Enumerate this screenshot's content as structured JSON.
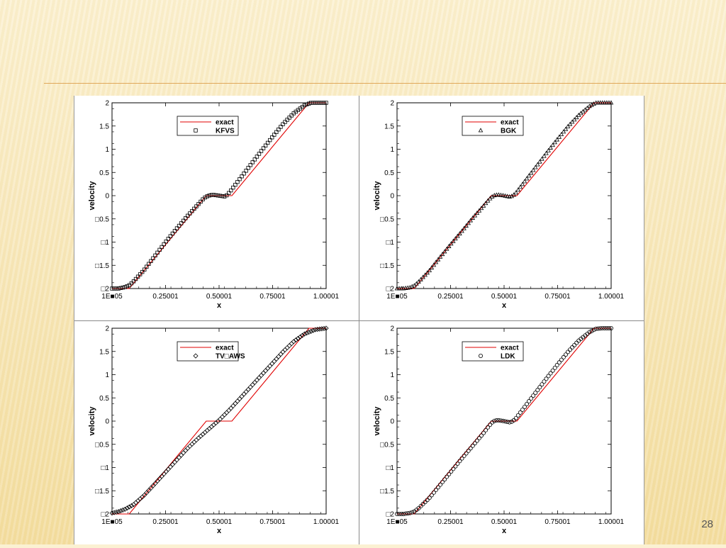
{
  "slide": {
    "number": "28"
  },
  "colors": {
    "exact": "#e00000",
    "markers": "#000000"
  },
  "chart_data": [
    {
      "type": "line",
      "xlabel": "x",
      "ylabel": "velocity",
      "xlim": [
        1e-05,
        1.00001
      ],
      "ylim": [
        -2,
        2
      ],
      "xticks": [
        "1E​■05",
        "0.25001",
        "0.50001",
        "0.75001",
        "1.00001"
      ],
      "yticks": [
        "2",
        "1.5",
        "1",
        "0.5",
        "0",
        "□0.5",
        "□1",
        "□1.5",
        "□2"
      ],
      "legend": {
        "position": "top-center",
        "exact_label": "exact",
        "method_label": "KFVS"
      },
      "marker": "square",
      "series": [
        {
          "name": "exact",
          "x": [
            1e-05,
            0.08,
            0.44,
            0.47,
            0.53,
            0.56,
            0.92,
            1.00001
          ],
          "y": [
            -2,
            -2,
            0,
            0,
            0,
            0,
            2,
            2
          ]
        },
        {
          "name": "KFVS",
          "x": [
            1e-05,
            0.03,
            0.06,
            0.08,
            0.1,
            0.15,
            0.2,
            0.25,
            0.3,
            0.35,
            0.4,
            0.43,
            0.45,
            0.47,
            0.5,
            0.53,
            0.55,
            0.6,
            0.65,
            0.7,
            0.75,
            0.8,
            0.85,
            0.9,
            0.93,
            0.96,
            1.00001
          ],
          "y": [
            -2,
            -2,
            -1.97,
            -1.93,
            -1.85,
            -1.6,
            -1.3,
            -1.0,
            -0.72,
            -0.45,
            -0.2,
            -0.05,
            0.0,
            0.02,
            0.0,
            -0.02,
            0.08,
            0.38,
            0.68,
            0.98,
            1.27,
            1.55,
            1.78,
            1.95,
            2.0,
            2.0,
            2.0
          ]
        }
      ]
    },
    {
      "type": "line",
      "xlabel": "x",
      "ylabel": "velocity",
      "xlim": [
        1e-05,
        1.00001
      ],
      "ylim": [
        -2,
        2
      ],
      "xticks": [
        "1E​■05",
        "0.25001",
        "0.50001",
        "0.75001",
        "1.00001"
      ],
      "yticks": [
        "2",
        "1.5",
        "1",
        "0.5",
        "0",
        "□0.5",
        "□1",
        "□1.5",
        "□2"
      ],
      "legend": {
        "position": "top-center",
        "exact_label": "exact",
        "method_label": "BGK"
      },
      "marker": "triangle",
      "series": [
        {
          "name": "exact",
          "x": [
            1e-05,
            0.08,
            0.44,
            0.47,
            0.53,
            0.56,
            0.92,
            1.00001
          ],
          "y": [
            -2,
            -2,
            0,
            0,
            0,
            0,
            2,
            2
          ]
        },
        {
          "name": "BGK",
          "x": [
            1e-05,
            0.03,
            0.06,
            0.08,
            0.1,
            0.15,
            0.2,
            0.25,
            0.3,
            0.35,
            0.4,
            0.43,
            0.45,
            0.47,
            0.5,
            0.53,
            0.55,
            0.6,
            0.65,
            0.7,
            0.75,
            0.8,
            0.85,
            0.9,
            0.93,
            0.96,
            1.00001
          ],
          "y": [
            -2,
            -2,
            -1.98,
            -1.94,
            -1.86,
            -1.62,
            -1.33,
            -1.05,
            -0.78,
            -0.5,
            -0.24,
            -0.08,
            0.0,
            0.02,
            0.0,
            -0.03,
            0.03,
            0.33,
            0.63,
            0.93,
            1.22,
            1.5,
            1.74,
            1.93,
            2.0,
            2.0,
            2.0
          ]
        }
      ]
    },
    {
      "type": "line",
      "xlabel": "x",
      "ylabel": "velocity",
      "xlim": [
        1e-05,
        1.00001
      ],
      "ylim": [
        -2,
        2
      ],
      "xticks": [
        "1E​■05",
        "0.25001",
        "0.50001",
        "0.75001",
        "1.00001"
      ],
      "yticks": [
        "2",
        "1.5",
        "1",
        "0.5",
        "0",
        "□0.5",
        "□1",
        "□1.5",
        "□2"
      ],
      "legend": {
        "position": "top-center",
        "exact_label": "exact",
        "method_label": "TV□AWS"
      },
      "marker": "diamond",
      "series": [
        {
          "name": "exact",
          "x": [
            1e-05,
            0.08,
            0.44,
            0.47,
            0.53,
            0.56,
            0.92,
            1.00001
          ],
          "y": [
            -2,
            -2,
            0,
            0,
            0,
            0,
            2,
            2
          ]
        },
        {
          "name": "TV□AWS",
          "x": [
            1e-05,
            0.03,
            0.06,
            0.1,
            0.15,
            0.2,
            0.25,
            0.3,
            0.35,
            0.4,
            0.45,
            0.5,
            0.55,
            0.6,
            0.65,
            0.7,
            0.75,
            0.8,
            0.85,
            0.9,
            0.95,
            1.00001
          ],
          "y": [
            -1.98,
            -1.95,
            -1.9,
            -1.8,
            -1.6,
            -1.35,
            -1.1,
            -0.85,
            -0.6,
            -0.38,
            -0.18,
            0.02,
            0.25,
            0.5,
            0.75,
            1.0,
            1.25,
            1.5,
            1.72,
            1.88,
            1.97,
            2.0
          ]
        }
      ]
    },
    {
      "type": "line",
      "xlabel": "x",
      "ylabel": "velocity",
      "xlim": [
        1e-05,
        1.00001
      ],
      "ylim": [
        -2,
        2
      ],
      "xticks": [
        "1E​■05",
        "0.25001",
        "0.50001",
        "0.75001",
        "1.00001"
      ],
      "yticks": [
        "2",
        "1.5",
        "1",
        "0.5",
        "0",
        "□0.5",
        "□1",
        "□1.5",
        "□2"
      ],
      "legend": {
        "position": "top-center",
        "exact_label": "exact",
        "method_label": "LDK"
      },
      "marker": "circle",
      "series": [
        {
          "name": "exact",
          "x": [
            1e-05,
            0.08,
            0.44,
            0.47,
            0.53,
            0.56,
            0.92,
            1.00001
          ],
          "y": [
            -2,
            -2,
            0,
            0,
            0,
            0,
            2,
            2
          ]
        },
        {
          "name": "LDK",
          "x": [
            1e-05,
            0.03,
            0.06,
            0.08,
            0.1,
            0.15,
            0.2,
            0.25,
            0.3,
            0.35,
            0.4,
            0.43,
            0.45,
            0.47,
            0.5,
            0.53,
            0.55,
            0.6,
            0.65,
            0.7,
            0.75,
            0.8,
            0.85,
            0.9,
            0.93,
            0.96,
            1.00001
          ],
          "y": [
            -2,
            -2,
            -1.98,
            -1.95,
            -1.88,
            -1.66,
            -1.38,
            -1.1,
            -0.82,
            -0.55,
            -0.28,
            -0.1,
            0.0,
            0.02,
            0.0,
            -0.03,
            0.03,
            0.33,
            0.63,
            0.93,
            1.22,
            1.5,
            1.74,
            1.92,
            1.99,
            2.0,
            2.0
          ]
        }
      ]
    }
  ]
}
